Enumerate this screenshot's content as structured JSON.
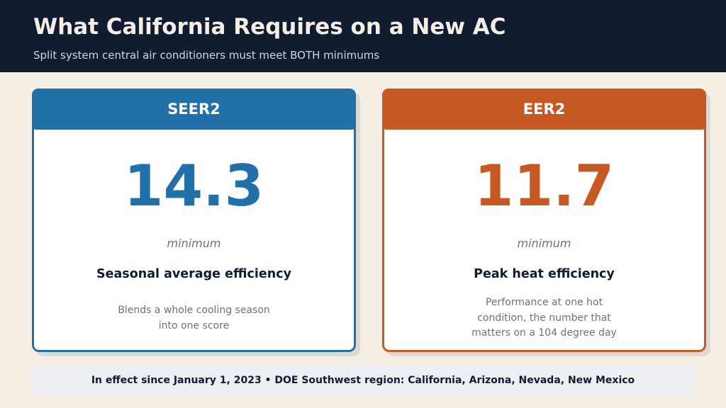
{
  "header": {
    "title": "What California Requires on a New AC",
    "subtitle": "Split system central air conditioners must meet BOTH minimums"
  },
  "cards": [
    {
      "header": "SEER2",
      "value": "14.3",
      "minimum_label": "minimum",
      "subtitle": "Seasonal average efficiency",
      "description_lines": [
        "Blends a whole cooling season",
        "into one score"
      ],
      "accent_color": "#2270a8"
    },
    {
      "header": "EER2",
      "value": "11.7",
      "minimum_label": "minimum",
      "subtitle": "Peak heat efficiency",
      "description_lines": [
        "Performance at one hot",
        "condition, the number that",
        "matters on a 104 degree day"
      ],
      "accent_color": "#c75a24"
    }
  ],
  "footer": {
    "text": "In effect since January 1, 2023  •  DOE Southwest region: California, Arizona, Nevada, New Mexico"
  },
  "colors": {
    "header_background": "#111c31",
    "page_background": "#f5eee5",
    "footer_background": "#eceef1"
  }
}
